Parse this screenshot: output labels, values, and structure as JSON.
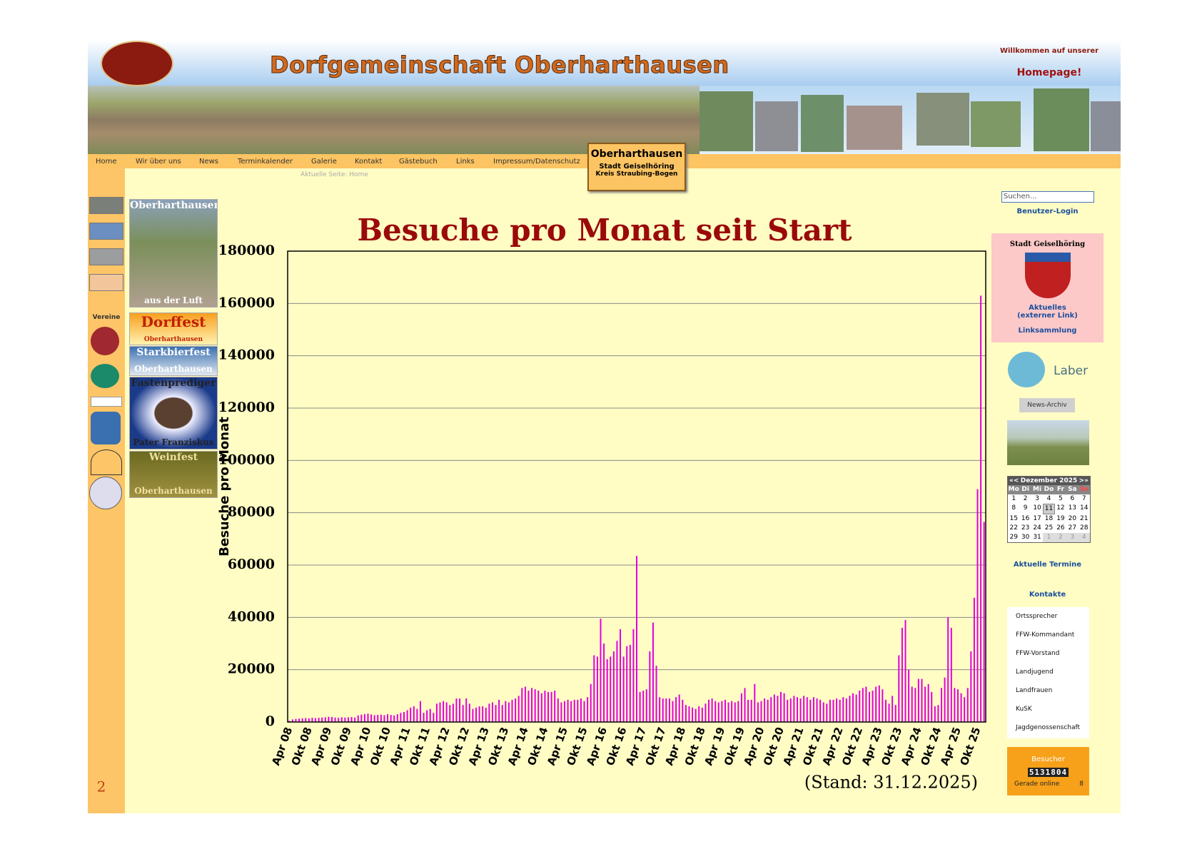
{
  "header": {
    "title": "Dorfgemeinschaft Oberharthausen",
    "welcome": "Willkommen auf unserer",
    "welcome_emph": "Homepage!",
    "badge": {
      "title": "Oberharthausen",
      "line1": "Stadt Geiselhöring",
      "line2": "Kreis Straubing-Bogen"
    }
  },
  "nav": {
    "items": [
      "Home",
      "Wir über uns",
      "News",
      "Terminkalender",
      "Galerie",
      "Kontakt",
      "Gästebuch",
      "Links",
      "Impressum/Datenschutz"
    ],
    "current": "Aktuelle Seite: Home"
  },
  "left_sidebar": {
    "label": "Vereine"
  },
  "promos": [
    {
      "title": "Oberharthausen",
      "subtitle": "aus der Luft"
    },
    {
      "title": "Dorffest",
      "subtitle": "Oberharthausen"
    },
    {
      "title": "Starkbierfest",
      "subtitle": "Oberharthausen"
    },
    {
      "title": "Fastenprediger",
      "subtitle": "Pater Franziskus"
    },
    {
      "title": "Weinfest",
      "subtitle": "Oberharthausen"
    }
  ],
  "right_sidebar": {
    "search": "Suchen...",
    "login": "Benutzer-Login",
    "city_box": {
      "title": "Stadt Geiselhöring",
      "link": "Aktuelles",
      "link_note": "(externer Link)"
    },
    "links": "Linksammlung",
    "ile_logo": "Laber",
    "news_archive": "News-Archiv",
    "calendar": {
      "prev": "«<",
      "title": "Dezember 2025",
      "next": ">»",
      "weekdays": [
        "Mo",
        "Di",
        "Mi",
        "Do",
        "Fr",
        "Sa",
        "So"
      ],
      "weeks": [
        [
          "1",
          "2",
          "3",
          "4",
          "5",
          "6",
          "7"
        ],
        [
          "8",
          "9",
          "10",
          "11",
          "12",
          "13",
          "14"
        ],
        [
          "15",
          "16",
          "17",
          "18",
          "19",
          "20",
          "21"
        ],
        [
          "22",
          "23",
          "24",
          "25",
          "26",
          "27",
          "28"
        ],
        [
          "29",
          "30",
          "31",
          "1",
          "2",
          "3",
          "4"
        ]
      ]
    },
    "events": "Aktuelle Termine",
    "contacts_title": "Kontakte",
    "contacts": [
      "Ortssprecher",
      "FFW-Kommandant",
      "FFW-Vorstand",
      "Landjugend",
      "Landfrauen",
      "KuSK",
      "Jagdgenossenschaft"
    ],
    "visitors": {
      "title": "Besucher",
      "count": "5131804",
      "online_label": "Gerade online",
      "online": "8"
    }
  },
  "chart_data": {
    "type": "bar",
    "title": "Besuche pro Monat seit Start",
    "ylabel": "Besuche pro Monat",
    "color": "#e000e0",
    "grid": true,
    "ylim": [
      0,
      180000
    ],
    "yticks": [
      0,
      20000,
      40000,
      60000,
      80000,
      100000,
      120000,
      140000,
      160000,
      180000
    ],
    "categories": [
      "Apr 08",
      null,
      null,
      null,
      null,
      null,
      "Okt 08",
      null,
      null,
      null,
      null,
      null,
      "Apr 09",
      null,
      null,
      null,
      null,
      null,
      "Okt 09",
      null,
      null,
      null,
      null,
      null,
      "Apr 10",
      null,
      null,
      null,
      null,
      null,
      "Okt 10",
      null,
      null,
      null,
      null,
      null,
      "Apr 11",
      null,
      null,
      null,
      null,
      null,
      "Okt 11",
      null,
      null,
      null,
      null,
      null,
      "Apr 12",
      null,
      null,
      null,
      null,
      null,
      "Okt 12",
      null,
      null,
      null,
      null,
      null,
      "Apr 13",
      null,
      null,
      null,
      null,
      null,
      "Okt 13",
      null,
      null,
      null,
      null,
      null,
      "Apr 14",
      null,
      null,
      null,
      null,
      null,
      "Okt 14",
      null,
      null,
      null,
      null,
      null,
      "Apr 15",
      null,
      null,
      null,
      null,
      null,
      "Okt 15",
      null,
      null,
      null,
      null,
      null,
      "Apr 16",
      null,
      null,
      null,
      null,
      null,
      "Okt 16",
      null,
      null,
      null,
      null,
      null,
      "Apr 17",
      null,
      null,
      null,
      null,
      null,
      "Okt 17",
      null,
      null,
      null,
      null,
      null,
      "Apr 18",
      null,
      null,
      null,
      null,
      null,
      "Okt 18",
      null,
      null,
      null,
      null,
      null,
      "Apr 19",
      null,
      null,
      null,
      null,
      null,
      "Okt 19",
      null,
      null,
      null,
      null,
      null,
      "Apr 20",
      null,
      null,
      null,
      null,
      null,
      "Okt 20",
      null,
      null,
      null,
      null,
      null,
      "Apr 21",
      null,
      null,
      null,
      null,
      null,
      "Okt 21",
      null,
      null,
      null,
      null,
      null,
      "Apr 22",
      null,
      null,
      null,
      null,
      null,
      "Okt 22",
      null,
      null,
      null,
      null,
      null,
      "Apr 23",
      null,
      null,
      null,
      null,
      null,
      "Okt 23",
      null,
      null,
      null,
      null,
      null,
      "Apr 24",
      null,
      null,
      null,
      null,
      null,
      "Okt 24",
      null,
      null,
      null,
      null,
      null,
      "Apr 25",
      null,
      null,
      null,
      null,
      null,
      "Okt 25",
      null,
      null
    ],
    "values": [
      500,
      1000,
      1200,
      1300,
      1400,
      1500,
      1400,
      1600,
      1500,
      1600,
      1700,
      1800,
      2000,
      1900,
      1700,
      1600,
      1800,
      1700,
      1800,
      1900,
      1700,
      2500,
      2800,
      3000,
      3200,
      2900,
      2600,
      2700,
      2800,
      2600,
      3000,
      2700,
      2500,
      3000,
      3500,
      3800,
      4500,
      5500,
      6000,
      5000,
      8000,
      3500,
      4500,
      5000,
      3500,
      7000,
      7500,
      8000,
      7500,
      6500,
      7000,
      9000,
      9000,
      6500,
      9000,
      7000,
      5000,
      5500,
      6000,
      6000,
      5500,
      7000,
      7500,
      6500,
      8500,
      6500,
      8000,
      7500,
      8500,
      9000,
      10000,
      13000,
      13500,
      12000,
      13000,
      12500,
      12000,
      11000,
      12000,
      11500,
      11500,
      12000,
      9000,
      7500,
      8000,
      8500,
      8000,
      8500,
      8500,
      9000,
      8000,
      9500,
      14500,
      25500,
      25000,
      39500,
      30000,
      24000,
      25000,
      27000,
      31000,
      35500,
      25000,
      29000,
      29500,
      35500,
      63500,
      11500,
      12000,
      12500,
      27000,
      38000,
      21500,
      9500,
      9000,
      9000,
      9000,
      8000,
      9500,
      10500,
      8500,
      6500,
      6000,
      5500,
      5000,
      6000,
      5500,
      7000,
      8500,
      9000,
      8000,
      7500,
      8000,
      8500,
      7500,
      8000,
      7500,
      8000,
      11000,
      13000,
      8500,
      8500,
      14500,
      7500,
      8000,
      9000,
      8500,
      9500,
      10500,
      10000,
      11500,
      11000,
      8500,
      9000,
      10000,
      9500,
      9000,
      10000,
      9500,
      8500,
      9500,
      9000,
      8500,
      7500,
      7000,
      8500,
      8500,
      9000,
      8500,
      9500,
      9000,
      10000,
      11000,
      10500,
      12000,
      13000,
      13500,
      11500,
      12000,
      13500,
      14000,
      12500,
      8500,
      7000,
      10000,
      6500,
      25500,
      36000,
      39000,
      20000,
      13500,
      13000,
      16500,
      16500,
      13500,
      14500,
      11500,
      6000,
      6500,
      13000,
      17000,
      40000,
      36000,
      13000,
      12500,
      11000,
      9500,
      13000,
      27000,
      47500,
      89000,
      163000,
      76500
    ]
  },
  "footer": {
    "stand": "(Stand: 31.12.2025)",
    "page_number": "2"
  }
}
